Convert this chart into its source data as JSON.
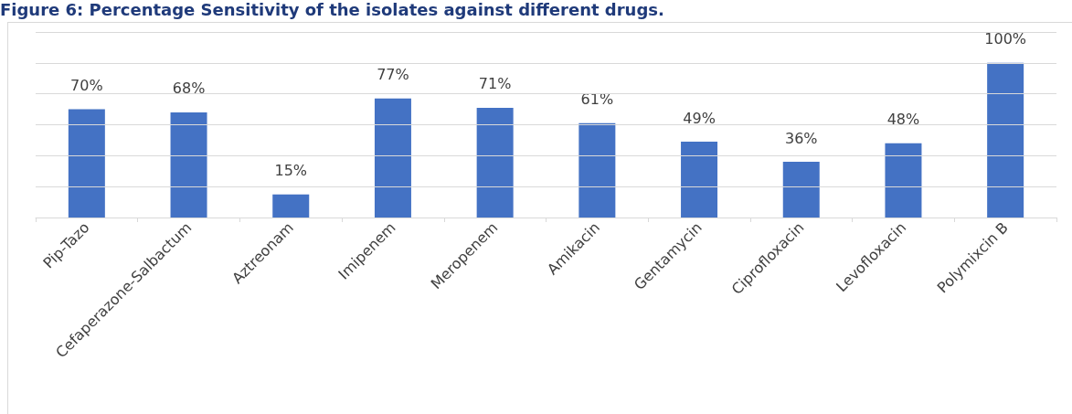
{
  "chart_data": {
    "type": "bar",
    "title": "Figure 6: Percentage Sensitivity of the isolates against different drugs.",
    "categories": [
      "Pip-Tazo",
      "Cefaperazone-Salbactum",
      "Aztreonam",
      "Imipenem",
      "Meropenem",
      "Amikacin",
      "Gentamycin",
      "Ciprofloxacin",
      "Levofloxacin",
      "Polymixcin B"
    ],
    "values": [
      70,
      68,
      15,
      77,
      71,
      61,
      49,
      36,
      48,
      100
    ],
    "value_labels": [
      "70%",
      "68%",
      "15%",
      "77%",
      "71%",
      "61%",
      "49%",
      "36%",
      "48%",
      "100%"
    ],
    "color": "#4472c4",
    "ylim": [
      0,
      120
    ],
    "yticks": [
      {
        "value": 0,
        "label": null
      },
      {
        "value": 20,
        "label": null
      },
      {
        "value": 40,
        "label": null
      },
      {
        "value": 60,
        "label": null
      },
      {
        "value": 80,
        "label": null
      },
      {
        "value": 100,
        "label": null
      },
      {
        "value": 120,
        "label": null
      }
    ],
    "tick_labels": "x",
    "grid": "y"
  }
}
